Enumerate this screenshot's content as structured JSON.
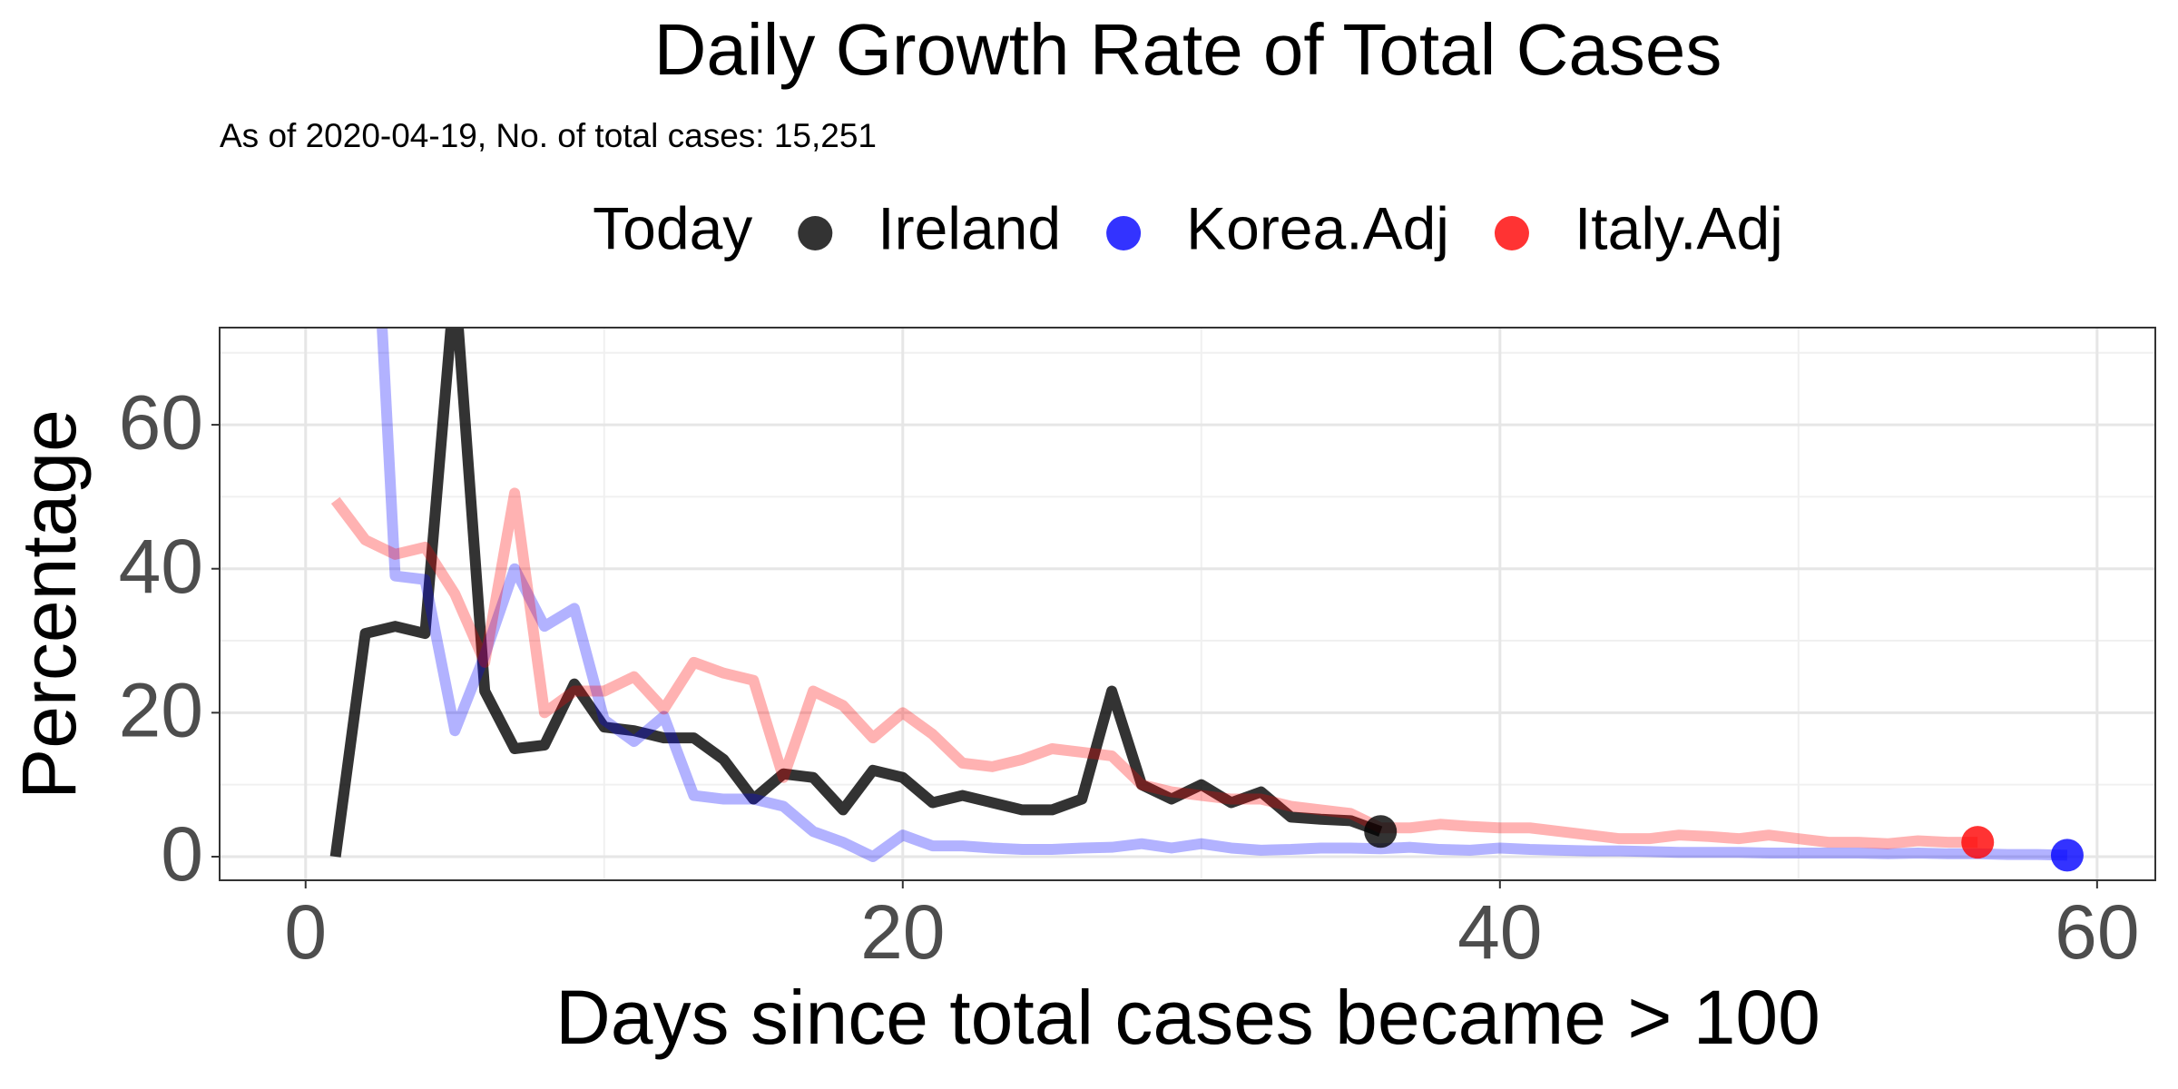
{
  "chart_data": {
    "type": "line",
    "title": "Daily Growth Rate of Total Cases",
    "subtitle": "As of 2020-04-19, No. of total cases: 15,251",
    "xlabel": "Days since total cases became > 100",
    "ylabel": "Percentage",
    "legend_title": "Today",
    "legend_position": "top",
    "grid": true,
    "xlim": [
      -2.88,
      61.95
    ],
    "ylim": [
      -3.28,
      73.5
    ],
    "xticks": [
      0,
      20,
      40,
      60
    ],
    "yticks": [
      0,
      20,
      40,
      60
    ],
    "xminor": [
      10,
      30,
      50
    ],
    "yminor": [
      10,
      30,
      50,
      70
    ],
    "series": [
      {
        "name": "Ireland",
        "color": "#000000",
        "line_alpha": 0.8,
        "point_alpha": 0.8,
        "x": [
          1,
          2,
          3,
          4,
          5,
          6,
          7,
          8,
          9,
          10,
          11,
          12,
          13,
          14,
          15,
          16,
          17,
          18,
          19,
          20,
          21,
          22,
          23,
          24,
          25,
          26,
          27,
          28,
          29,
          30,
          31,
          32,
          33,
          34,
          35,
          36
        ],
        "values": [
          0,
          31,
          32,
          31,
          80,
          23,
          15,
          15.5,
          24,
          18,
          17.5,
          16.5,
          16.5,
          13.5,
          8,
          11.5,
          11,
          6.5,
          12,
          11,
          7.5,
          8.5,
          7.5,
          6.5,
          6.5,
          8,
          23,
          10,
          8,
          10,
          7.5,
          9,
          5.5,
          5.2,
          5,
          3.5
        ]
      },
      {
        "name": "Korea.Adj",
        "color": "#0000ff",
        "line_alpha": 0.3,
        "point_alpha": 0.8,
        "x": [
          2,
          3,
          4,
          5,
          6,
          7,
          8,
          9,
          10,
          11,
          12,
          13,
          14,
          15,
          16,
          17,
          18,
          19,
          20,
          21,
          22,
          23,
          24,
          25,
          26,
          27,
          28,
          29,
          30,
          31,
          32,
          33,
          34,
          35,
          36,
          37,
          38,
          39,
          40,
          41,
          42,
          43,
          44,
          45,
          46,
          47,
          48,
          49,
          50,
          51,
          52,
          53,
          54,
          55,
          56,
          57,
          58,
          59
        ],
        "values": [
          118,
          39,
          38.5,
          17.5,
          28,
          40,
          32,
          34.5,
          19,
          16,
          19.5,
          8.5,
          8,
          8,
          7,
          3.5,
          2,
          0,
          3,
          1.5,
          1.5,
          1.2,
          1,
          1,
          1.2,
          1.3,
          1.8,
          1.2,
          1.8,
          1.2,
          0.9,
          1,
          1.2,
          1.2,
          1.1,
          1.3,
          1,
          0.9,
          1.2,
          1,
          0.9,
          0.8,
          0.8,
          0.7,
          0.6,
          0.6,
          0.6,
          0.5,
          0.5,
          0.5,
          0.5,
          0.4,
          0.5,
          0.4,
          0.4,
          0.3,
          0.3,
          0.2
        ]
      },
      {
        "name": "Italy.Adj",
        "color": "#ff0000",
        "line_alpha": 0.3,
        "point_alpha": 0.8,
        "x": [
          1,
          2,
          3,
          4,
          5,
          6,
          7,
          8,
          9,
          10,
          11,
          12,
          13,
          14,
          15,
          16,
          17,
          18,
          19,
          20,
          21,
          22,
          23,
          24,
          25,
          26,
          27,
          28,
          29,
          30,
          31,
          32,
          33,
          34,
          35,
          36,
          37,
          38,
          39,
          40,
          41,
          42,
          43,
          44,
          45,
          46,
          47,
          48,
          49,
          50,
          51,
          52,
          53,
          54,
          55,
          56
        ],
        "values": [
          49.5,
          44,
          42,
          43,
          36.5,
          27,
          50.5,
          20,
          23,
          23,
          25,
          20.5,
          27,
          25.5,
          24.5,
          11,
          23,
          21,
          16.5,
          20,
          17,
          13,
          12.5,
          13.5,
          15,
          14.5,
          14,
          10,
          9,
          8.5,
          8,
          8,
          7,
          6.5,
          6,
          4,
          4,
          4.5,
          4.2,
          4,
          4,
          3.5,
          3,
          2.5,
          2.5,
          3,
          2.8,
          2.5,
          3,
          2.5,
          2,
          2,
          1.8,
          2.2,
          2,
          2
        ]
      }
    ]
  }
}
